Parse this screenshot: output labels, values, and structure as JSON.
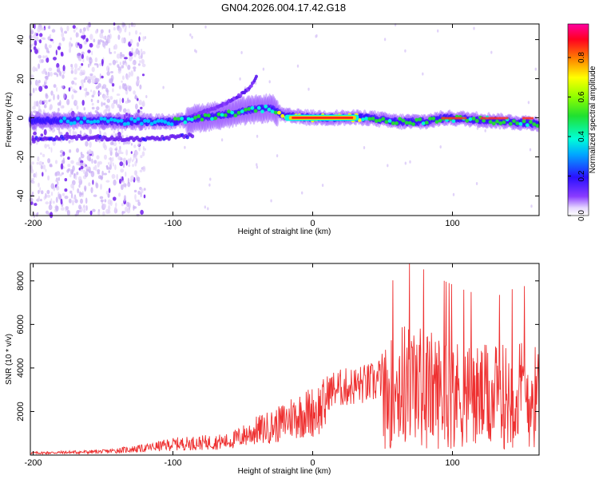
{
  "title": "GN04.2026.004.17.42.G18",
  "chart_data": [
    {
      "type": "heatmap",
      "name": "spectrogram",
      "xlabel": "Height of straight line (km)",
      "ylabel": "Frequency (Hz)",
      "xlim": [
        -202,
        162
      ],
      "ylim": [
        -50,
        48
      ],
      "xticks": [
        -200,
        -100,
        0,
        100
      ],
      "yticks": [
        -40,
        -20,
        0,
        20,
        40
      ],
      "colorbar": {
        "label": "Normalized spectral amplitude",
        "range": [
          0,
          0.97
        ],
        "ticks": [
          0.0,
          0.2,
          0.4,
          0.6,
          0.8
        ]
      },
      "main_band": [
        {
          "x": -200,
          "y": -1.5
        },
        {
          "x": -160,
          "y": -1.5
        },
        {
          "x": -120,
          "y": -2
        },
        {
          "x": -100,
          "y": -2
        },
        {
          "x": -80,
          "y": 0
        },
        {
          "x": -60,
          "y": 2
        },
        {
          "x": -45,
          "y": 4
        },
        {
          "x": -30,
          "y": 5
        },
        {
          "x": -20,
          "y": 1
        },
        {
          "x": 0,
          "y": 0
        },
        {
          "x": 20,
          "y": 0
        },
        {
          "x": 40,
          "y": 0
        },
        {
          "x": 60,
          "y": -2
        },
        {
          "x": 80,
          "y": -2
        },
        {
          "x": 95,
          "y": 0
        },
        {
          "x": 120,
          "y": -1
        },
        {
          "x": 140,
          "y": -2
        },
        {
          "x": 160,
          "y": -3
        }
      ],
      "upper_branch": [
        {
          "x": -90,
          "y": 0
        },
        {
          "x": -70,
          "y": 5
        },
        {
          "x": -55,
          "y": 10
        },
        {
          "x": -45,
          "y": 15
        },
        {
          "x": -40,
          "y": 21
        }
      ],
      "lower_branch": [
        {
          "x": -200,
          "y": -11
        },
        {
          "x": -170,
          "y": -10
        },
        {
          "x": -130,
          "y": -11
        },
        {
          "x": -100,
          "y": -10
        },
        {
          "x": -85,
          "y": -9
        }
      ]
    },
    {
      "type": "line",
      "name": "snr",
      "xlabel": "Height of straight line (km)",
      "ylabel": "SNR (10 * v/v)",
      "xlim": [
        -202,
        162
      ],
      "ylim": [
        0,
        8800
      ],
      "xticks": [
        -200,
        -100,
        0,
        100
      ],
      "yticks": [
        2000,
        4000,
        6000,
        8000
      ],
      "color": "#ee3030",
      "envelope": [
        {
          "x": -200,
          "v": 150
        },
        {
          "x": -150,
          "v": 250
        },
        {
          "x": -120,
          "v": 500
        },
        {
          "x": -100,
          "v": 800
        },
        {
          "x": -80,
          "v": 900
        },
        {
          "x": -60,
          "v": 1000
        },
        {
          "x": -40,
          "v": 1800
        },
        {
          "x": -25,
          "v": 2200
        },
        {
          "x": -15,
          "v": 2800
        },
        {
          "x": 0,
          "v": 3200
        },
        {
          "x": 15,
          "v": 3900
        },
        {
          "x": 30,
          "v": 4100
        },
        {
          "x": 45,
          "v": 4300
        },
        {
          "x": 55,
          "v": 5200
        },
        {
          "x": 62,
          "v": 6200
        },
        {
          "x": 75,
          "v": 6000
        },
        {
          "x": 90,
          "v": 5600
        },
        {
          "x": 110,
          "v": 5200
        },
        {
          "x": 130,
          "v": 5000
        },
        {
          "x": 150,
          "v": 5400
        },
        {
          "x": 162,
          "v": 5000
        }
      ]
    }
  ]
}
